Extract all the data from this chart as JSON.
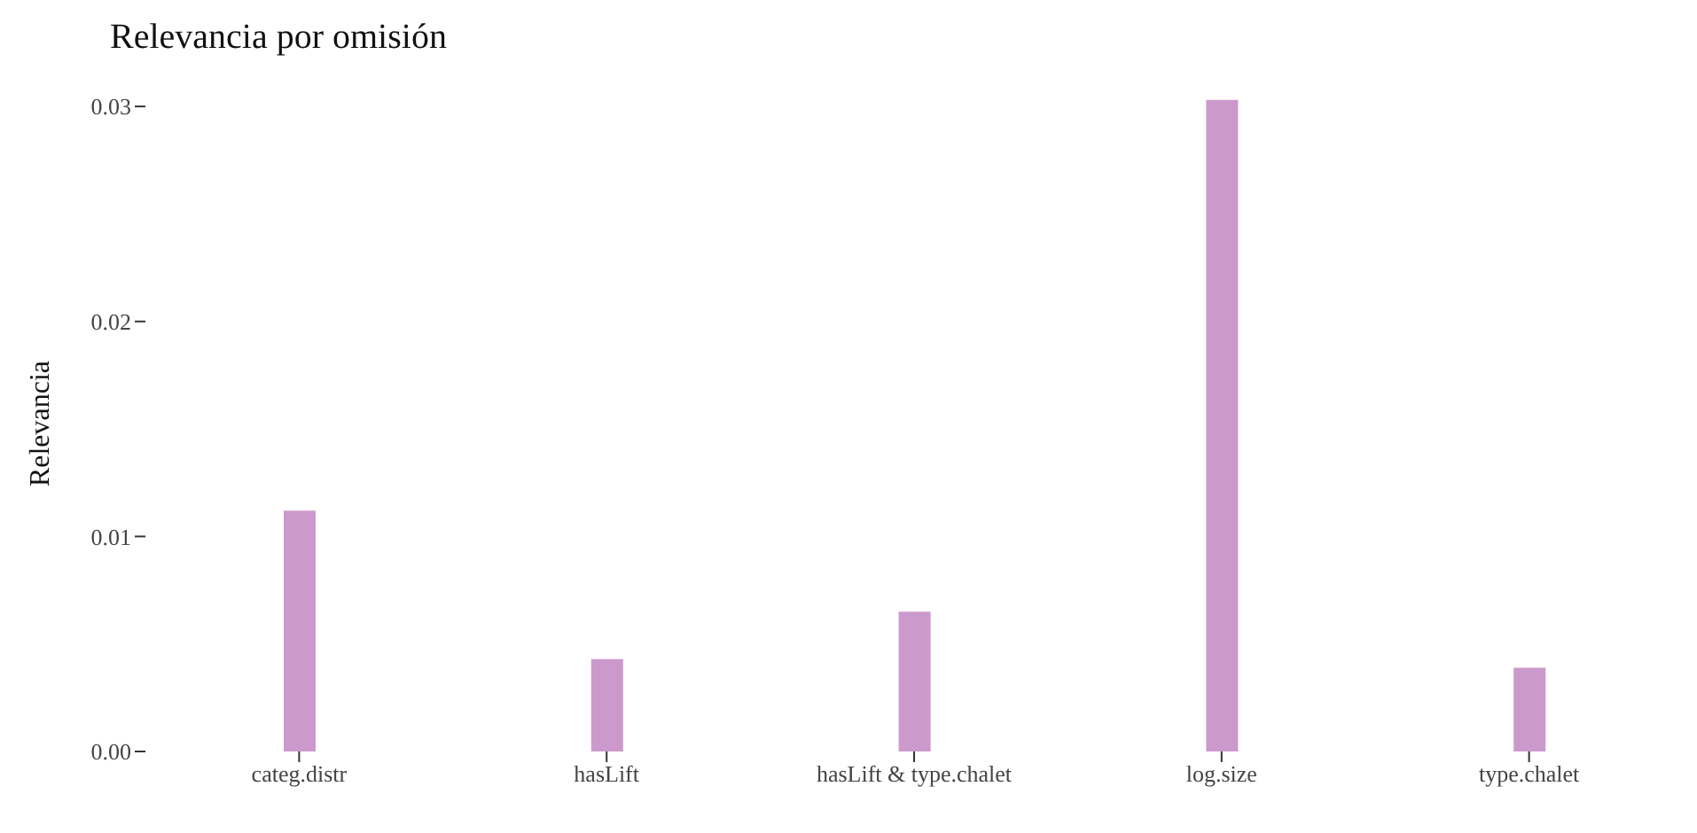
{
  "chart_data": {
    "type": "bar",
    "title": "Relevancia por omisión",
    "ylabel": "Relevancia",
    "categories": [
      "categ.distr",
      "hasLift",
      "hasLift & type.chalet",
      "log.size",
      "type.chalet"
    ],
    "values": [
      0.0112,
      0.0043,
      0.0065,
      0.0303,
      0.0039
    ],
    "color": "#cc99cc",
    "ylim": [
      0,
      0.0305
    ],
    "yticks": [
      {
        "value": 0,
        "label": "0.00"
      },
      {
        "value": 0.01,
        "label": "0.01"
      },
      {
        "value": 0.02,
        "label": "0.02"
      },
      {
        "value": 0.03,
        "label": "0.03"
      }
    ],
    "grid": false
  }
}
